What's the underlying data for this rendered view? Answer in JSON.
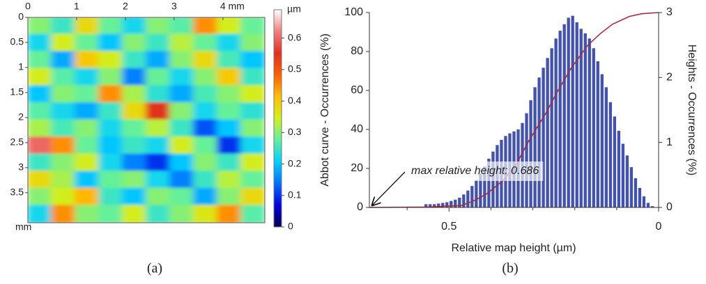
{
  "chart_data": [
    {
      "type": "heatmap",
      "xlim": [
        0,
        4.86
      ],
      "ylim": [
        0,
        4.1
      ],
      "xticks": [
        0,
        1,
        2,
        3,
        {
          "value": 4,
          "label": "4 mm"
        }
      ],
      "yticks": [
        0,
        0.5,
        1,
        1.5,
        2,
        2.5,
        3,
        3.5
      ],
      "y_unit": "mm",
      "zlim": [
        0,
        0.69
      ],
      "zticks": [
        0,
        0.1,
        0.2,
        0.3,
        0.4,
        0.5,
        0.6
      ],
      "z_unit": "µm",
      "colormap": [
        "#000050",
        "#0000e0",
        "#0070ff",
        "#00d0ff",
        "#60f0a0",
        "#d0f020",
        "#ffc000",
        "#ff6000",
        "#e03020",
        "#f08080",
        "#ffffff"
      ],
      "z": [
        [
          0.3,
          0.25,
          0.38,
          0.28,
          0.22,
          0.3,
          0.27,
          0.45,
          0.35,
          0.28
        ],
        [
          0.22,
          0.35,
          0.28,
          0.2,
          0.3,
          0.25,
          0.33,
          0.28,
          0.22,
          0.3
        ],
        [
          0.28,
          0.18,
          0.4,
          0.35,
          0.25,
          0.18,
          0.3,
          0.38,
          0.26,
          0.2
        ],
        [
          0.35,
          0.27,
          0.22,
          0.3,
          0.15,
          0.28,
          0.22,
          0.3,
          0.4,
          0.25
        ],
        [
          0.2,
          0.3,
          0.28,
          0.45,
          0.32,
          0.24,
          0.18,
          0.26,
          0.3,
          0.35
        ],
        [
          0.27,
          0.22,
          0.18,
          0.25,
          0.38,
          0.55,
          0.3,
          0.22,
          0.28,
          0.24
        ],
        [
          0.32,
          0.26,
          0.3,
          0.22,
          0.28,
          0.33,
          0.25,
          0.12,
          0.2,
          0.3
        ],
        [
          0.6,
          0.45,
          0.28,
          0.2,
          0.25,
          0.22,
          0.35,
          0.28,
          0.1,
          0.22
        ],
        [
          0.25,
          0.3,
          0.35,
          0.22,
          0.15,
          0.1,
          0.2,
          0.3,
          0.25,
          0.35
        ],
        [
          0.38,
          0.32,
          0.2,
          0.28,
          0.3,
          0.22,
          0.15,
          0.25,
          0.33,
          0.28
        ],
        [
          0.3,
          0.35,
          0.42,
          0.25,
          0.2,
          0.3,
          0.28,
          0.18,
          0.3,
          0.38
        ],
        [
          0.22,
          0.45,
          0.3,
          0.28,
          0.35,
          0.25,
          0.3,
          0.36,
          0.45,
          0.27
        ]
      ]
    },
    {
      "type": "histogram",
      "x_label": "Relative map height (µm)",
      "y_label": "Abbot curve - Occurrences (%)",
      "y2_label": "Heights - Occurrences (%)",
      "annotation": "max relative height: 0.686",
      "xlim": [
        0.69,
        0
      ],
      "xticks": [
        0.5,
        0
      ],
      "xminor_ticks": [
        0.6,
        0.4,
        0.3,
        0.2,
        0.1
      ],
      "ylim": [
        0,
        100
      ],
      "yticks": [
        0,
        20,
        40,
        60,
        80,
        100
      ],
      "y2lim": [
        0,
        3
      ],
      "y2ticks": [
        0,
        1,
        2,
        3
      ],
      "bins": [
        0.56,
        0.55,
        0.54,
        0.53,
        0.52,
        0.51,
        0.5,
        0.49,
        0.48,
        0.47,
        0.46,
        0.45,
        0.44,
        0.43,
        0.42,
        0.41,
        0.4,
        0.39,
        0.38,
        0.37,
        0.36,
        0.35,
        0.34,
        0.33,
        0.32,
        0.31,
        0.3,
        0.29,
        0.28,
        0.27,
        0.26,
        0.25,
        0.24,
        0.23,
        0.22,
        0.21,
        0.2,
        0.19,
        0.18,
        0.17,
        0.16,
        0.15,
        0.14,
        0.13,
        0.12,
        0.11,
        0.1,
        0.09,
        0.08,
        0.07,
        0.06,
        0.05,
        0.04,
        0.03,
        0.02,
        0.01
      ],
      "series": [
        {
          "name": "Heights",
          "axis": "y2",
          "color": "#4352aa",
          "values": [
            0.05,
            0.05,
            0.05,
            0.06,
            0.07,
            0.08,
            0.1,
            0.12,
            0.15,
            0.2,
            0.26,
            0.33,
            0.42,
            0.52,
            0.63,
            0.75,
            0.86,
            0.96,
            1.04,
            1.1,
            1.14,
            1.17,
            1.2,
            1.3,
            1.45,
            1.65,
            1.85,
            2.0,
            2.15,
            2.3,
            2.45,
            2.6,
            2.72,
            2.82,
            2.92,
            2.95,
            2.85,
            2.75,
            2.68,
            2.6,
            2.45,
            2.25,
            2.05,
            1.85,
            1.62,
            1.4,
            1.18,
            0.98,
            0.8,
            0.62,
            0.45,
            0.3,
            0.17,
            0.07,
            0.02
          ]
        },
        {
          "name": "Abbot curve",
          "color": "#a52a45",
          "x": [
            0.69,
            0.55,
            0.47,
            0.44,
            0.41,
            0.37,
            0.34,
            0.31,
            0.27,
            0.24,
            0.21,
            0.17,
            0.14,
            0.11,
            0.07,
            0.04,
            0
          ],
          "values": [
            0,
            0.2,
            1,
            3.5,
            7,
            14,
            22,
            34,
            48,
            60,
            71,
            83,
            89,
            94,
            98,
            99.4,
            100
          ]
        }
      ]
    }
  ],
  "captions": [
    "(a)",
    "(b)"
  ]
}
